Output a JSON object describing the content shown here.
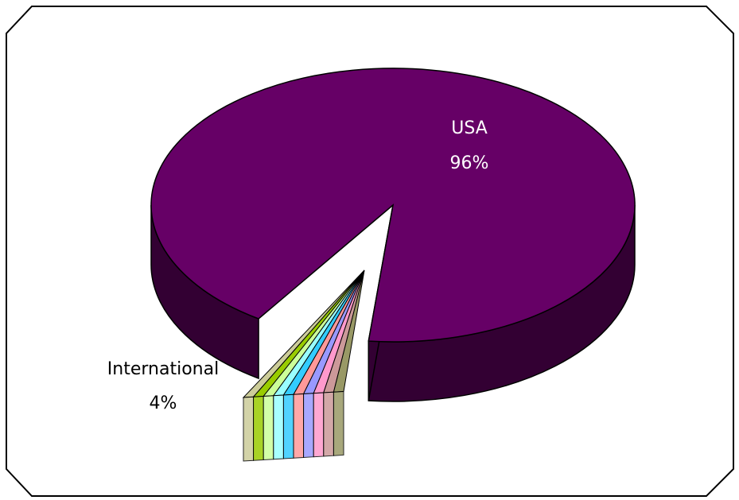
{
  "chart_data": {
    "type": "pie",
    "three_d": true,
    "slices": [
      {
        "label": "USA",
        "percent_label": "96%",
        "value": 96,
        "color": "#660066"
      },
      {
        "label": "International",
        "percent_label": "4%",
        "value": 4,
        "color": "#99ffff"
      }
    ],
    "international_breakdown_colors": [
      "#cccc99",
      "#99cc00",
      "#ccff99",
      "#99ffff",
      "#33ccff",
      "#ff9999",
      "#9999ff",
      "#ff99cc",
      "#cc9999",
      "#999966"
    ],
    "frame_color": "#000000",
    "background": "#ffffff"
  }
}
